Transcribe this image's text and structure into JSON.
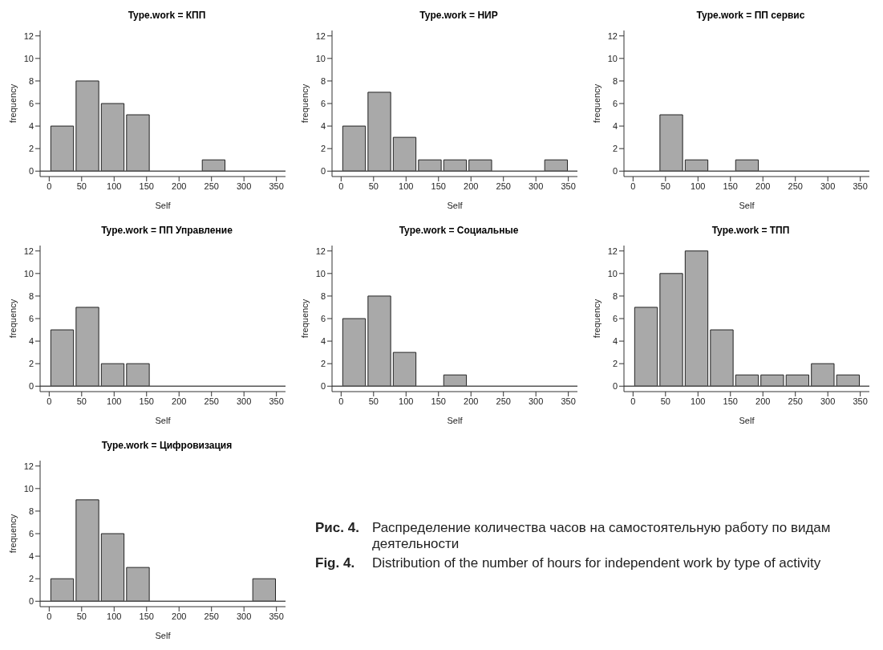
{
  "chart_data": [
    {
      "type": "histogram",
      "title": "Type.work = КПП",
      "xlabel": "Self",
      "ylabel": "frequency",
      "bins": [
        0,
        38.9,
        77.8,
        116.7,
        155.6,
        194.4,
        233.3,
        272.2,
        311.1,
        350
      ],
      "values": [
        4,
        8,
        6,
        5,
        0,
        0,
        1,
        0,
        0
      ],
      "color": "#a9a9a9",
      "xlim": [
        -14,
        364
      ],
      "xticks": [
        0,
        50,
        100,
        150,
        200,
        250,
        300,
        350
      ],
      "ylim": [
        -0.48,
        12.48
      ],
      "yticks": [
        0,
        2,
        4,
        6,
        8,
        10,
        12
      ],
      "ref_lines": [
        {
          "axis": "y",
          "value": 0,
          "color": "#555555"
        }
      ]
    },
    {
      "type": "histogram",
      "title": "Type.work = НИР",
      "xlabel": "Self",
      "ylabel": "frequency",
      "bins": [
        0,
        38.9,
        77.8,
        116.7,
        155.6,
        194.4,
        233.3,
        272.2,
        311.1,
        350
      ],
      "values": [
        4,
        7,
        3,
        1,
        1,
        1,
        0,
        0,
        1
      ],
      "color": "#a9a9a9",
      "xlim": [
        -14,
        364
      ],
      "xticks": [
        0,
        50,
        100,
        150,
        200,
        250,
        300,
        350
      ],
      "ylim": [
        -0.48,
        12.48
      ],
      "yticks": [
        0,
        2,
        4,
        6,
        8,
        10,
        12
      ],
      "ref_lines": [
        {
          "axis": "y",
          "value": 0,
          "color": "#555555"
        }
      ]
    },
    {
      "type": "histogram",
      "title": "Type.work = ПП сервис",
      "xlabel": "Self",
      "ylabel": "frequency",
      "bins": [
        0,
        38.9,
        77.8,
        116.7,
        155.6,
        194.4,
        233.3,
        272.2,
        311.1,
        350
      ],
      "values": [
        0,
        5,
        1,
        0,
        1,
        0,
        0,
        0,
        0
      ],
      "color": "#a9a9a9",
      "xlim": [
        -14,
        364
      ],
      "xticks": [
        0,
        50,
        100,
        150,
        200,
        250,
        300,
        350
      ],
      "ylim": [
        -0.48,
        12.48
      ],
      "yticks": [
        0,
        2,
        4,
        6,
        8,
        10,
        12
      ],
      "ref_lines": [
        {
          "axis": "y",
          "value": 0,
          "color": "#555555"
        }
      ]
    },
    {
      "type": "histogram",
      "title": "Type.work = ПП Управление",
      "xlabel": "Self",
      "ylabel": "frequency",
      "bins": [
        0,
        38.9,
        77.8,
        116.7,
        155.6,
        194.4,
        233.3,
        272.2,
        311.1,
        350
      ],
      "values": [
        5,
        7,
        2,
        2,
        0,
        0,
        0,
        0,
        0
      ],
      "color": "#a9a9a9",
      "xlim": [
        -14,
        364
      ],
      "xticks": [
        0,
        50,
        100,
        150,
        200,
        250,
        300,
        350
      ],
      "ylim": [
        -0.48,
        12.48
      ],
      "yticks": [
        0,
        2,
        4,
        6,
        8,
        10,
        12
      ],
      "ref_lines": [
        {
          "axis": "y",
          "value": 0,
          "color": "#555555"
        }
      ]
    },
    {
      "type": "histogram",
      "title": "Type.work = Социальные",
      "xlabel": "Self",
      "ylabel": "frequency",
      "bins": [
        0,
        38.9,
        77.8,
        116.7,
        155.6,
        194.4,
        233.3,
        272.2,
        311.1,
        350
      ],
      "values": [
        6,
        8,
        3,
        0,
        1,
        0,
        0,
        0,
        0
      ],
      "color": "#a9a9a9",
      "xlim": [
        -14,
        364
      ],
      "xticks": [
        0,
        50,
        100,
        150,
        200,
        250,
        300,
        350
      ],
      "ylim": [
        -0.48,
        12.48
      ],
      "yticks": [
        0,
        2,
        4,
        6,
        8,
        10,
        12
      ],
      "ref_lines": [
        {
          "axis": "y",
          "value": 0,
          "color": "#555555"
        }
      ]
    },
    {
      "type": "histogram",
      "title": "Type.work = ТПП",
      "xlabel": "Self",
      "ylabel": "frequency",
      "bins": [
        0,
        38.9,
        77.8,
        116.7,
        155.6,
        194.4,
        233.3,
        272.2,
        311.1,
        350
      ],
      "values": [
        7,
        10,
        12,
        5,
        1,
        1,
        1,
        2,
        1
      ],
      "color": "#a9a9a9",
      "xlim": [
        -14,
        364
      ],
      "xticks": [
        0,
        50,
        100,
        150,
        200,
        250,
        300,
        350
      ],
      "ylim": [
        -0.48,
        12.48
      ],
      "yticks": [
        0,
        2,
        4,
        6,
        8,
        10,
        12
      ],
      "ref_lines": [
        {
          "axis": "y",
          "value": 0,
          "color": "#555555"
        }
      ]
    },
    {
      "type": "histogram",
      "title": "Type.work = Цифровизация",
      "xlabel": "Self",
      "ylabel": "frequency",
      "bins": [
        0,
        38.9,
        77.8,
        116.7,
        155.6,
        194.4,
        233.3,
        272.2,
        311.1,
        350
      ],
      "values": [
        2,
        9,
        6,
        3,
        0,
        0,
        0,
        0,
        2
      ],
      "color": "#a9a9a9",
      "xlim": [
        -14,
        364
      ],
      "xticks": [
        0,
        50,
        100,
        150,
        200,
        250,
        300,
        350
      ],
      "ylim": [
        -0.48,
        12.48
      ],
      "yticks": [
        0,
        2,
        4,
        6,
        8,
        10,
        12
      ],
      "ref_lines": [
        {
          "axis": "y",
          "value": 0,
          "color": "#555555"
        }
      ],
      "annotations": [
        "Рис. 4.",
        "Распределение количества часов на самостоятельную работу по видам деятельности",
        "Fig. 4.",
        "Distribution of the number of hours for independent work by type of activity"
      ]
    }
  ]
}
